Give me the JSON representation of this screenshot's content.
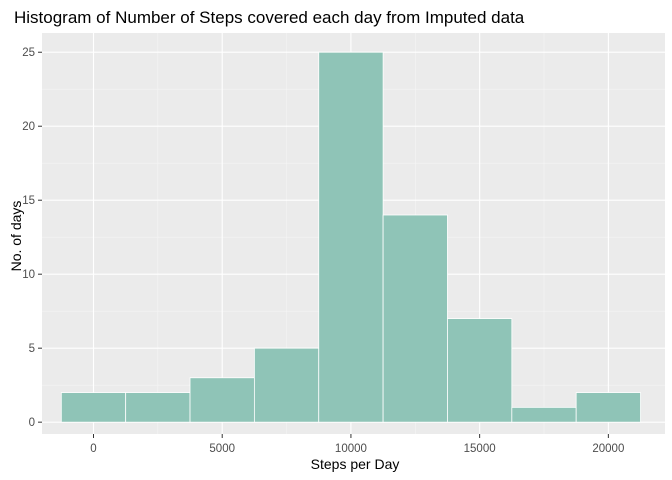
{
  "chart_data": {
    "type": "bar",
    "title": "Histogram of Number of Steps covered each day from Imputed data",
    "xlabel": "Steps per Day",
    "ylabel": "No. of days",
    "xlim": [
      -2000,
      22200
    ],
    "ylim": [
      -0.8,
      26.3
    ],
    "xticks": [
      0,
      5000,
      10000,
      15000,
      20000
    ],
    "yticks": [
      0,
      5,
      10,
      15,
      20,
      25
    ],
    "grid": true,
    "bin_width": 2500,
    "bins": [
      {
        "start": -1250,
        "end": 1250,
        "count": 2
      },
      {
        "start": 1250,
        "end": 3750,
        "count": 2
      },
      {
        "start": 3750,
        "end": 6250,
        "count": 3
      },
      {
        "start": 6250,
        "end": 8750,
        "count": 5
      },
      {
        "start": 8750,
        "end": 11250,
        "count": 25
      },
      {
        "start": 11250,
        "end": 13750,
        "count": 14
      },
      {
        "start": 13750,
        "end": 16250,
        "count": 7
      },
      {
        "start": 16250,
        "end": 18750,
        "count": 1
      },
      {
        "start": 18750,
        "end": 21250,
        "count": 2
      }
    ],
    "colors": {
      "panel_background": "#ebebeb",
      "grid_major": "#ffffff",
      "grid_minor": "#f5f5f5",
      "bar_fill": "#8fc4b7",
      "bar_outline": "#ffffff"
    }
  }
}
